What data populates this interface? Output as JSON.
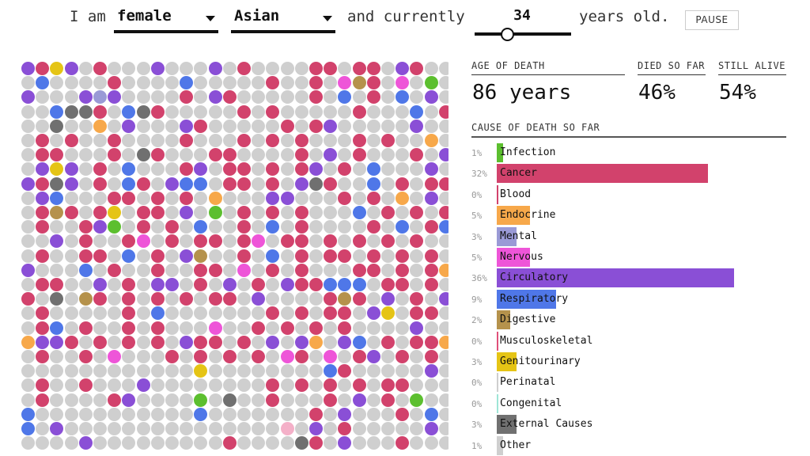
{
  "sentence": {
    "i_am": "I am",
    "sex": "female",
    "race": "Asian",
    "and_currently": "and currently",
    "age": "34",
    "years_old": "years old.",
    "pause_label": "PAUSE"
  },
  "slider": {
    "value": 34
  },
  "stats": {
    "age_of_death_label": "AGE OF DEATH",
    "age_of_death_value": "86 years",
    "died_label": "DIED SO FAR",
    "died_value": "46%",
    "alive_label": "STILL ALIVE",
    "alive_value": "54%"
  },
  "colors": {
    "alive": "#cfcfcf",
    "Infection": "#5cbf2f",
    "Cancer": "#d2426c",
    "Blood": "#d2426c",
    "Endocrine": "#f7a84a",
    "Mental": "#9a9ad6",
    "Nervous": "#ee55d8",
    "Circulatory": "#8a4fd6",
    "Respiratory": "#4f77e8",
    "Digestive": "#b5924c",
    "Musculoskeletal": "#e0507a",
    "Genitourinary": "#e5c415",
    "Perinatal": "#cfcfcf",
    "Congenital": "#9ee5d6",
    "External Causes": "#707070",
    "Other": "#bbbbbb"
  },
  "chart_data": [
    {
      "type": "bar",
      "title": "CAUSE OF DEATH SO FAR",
      "orientation": "horizontal",
      "categories": [
        "Infection",
        "Cancer",
        "Blood",
        "Endocrine",
        "Mental",
        "Nervous",
        "Circulatory",
        "Respiratory",
        "Digestive",
        "Musculoskeletal",
        "Genitourinary",
        "Perinatal",
        "Congenital",
        "External Causes",
        "Other"
      ],
      "values": [
        1,
        32,
        0,
        5,
        3,
        5,
        36,
        9,
        2,
        0,
        3,
        0,
        0,
        3,
        1
      ],
      "labels": [
        "1%",
        "32%",
        "0%",
        "5%",
        "3%",
        "5%",
        "36%",
        "9%",
        "2%",
        "0%",
        "3%",
        "0%",
        "0%",
        "3%",
        "1%"
      ],
      "unit": "%"
    },
    {
      "type": "scatter",
      "title": "population dot grid",
      "rows": 27,
      "cols": 30,
      "legend": [
        "alive",
        "Infection",
        "Cancer",
        "Endocrine",
        "Mental",
        "Nervous",
        "Circulatory",
        "Respiratory",
        "Digestive",
        "Genitourinary",
        "External Causes",
        "Congenital"
      ],
      "grid": [
        "VRYVgRgggVgggVgRggggRRgRRgVRgg",
        "gBggggRggggBgggggRggRgPnRgPgGg",
        "VgggVCVggggRgVRgggggRgBgRgBgVg",
        "ggBXXRgBXRgggggRgRgggggRgggBgR",
        "ggXggEgVgggVRgggggRgRVgggggVgg",
        "gRgRggRggggRgggRgRgRgggRgRggEg",
        "gRRgggRgXRgggRRggggRgVgRgggRgV",
        "gVYVgRgBgggRVgRRgRgRVgRgBgggVg",
        "VRXVgRgBRgVBBgRRgRgVXRggBgRgRR",
        "gVBgggRRgRgRgEgggVVgggRgRgEgVg",
        "gRnRgRYgRRgVgGgRgRgRgggBgRgRgR",
        "gRggRVGgRgRgBggRgBgRggggRgBgRB",
        "ggVgRggRPgRgRRgRPgRRgRgRgRgRgg",
        "gRggRRgBgRgVnggRgBgRgRRgRgRgRg",
        "VgggBgRggRggRRgPgRgRgggRRgRgRE",
        "gRRggVgRgVVgRgVgRgVRRBBBgRRgRg",
        "RgXgnRgRgRgRgRRgVggggRnRgVgRgV",
        "gRgggggRgBgggggggRgRgRRgVYgRRg",
        "gRBgRggRgRgggPggRgRgRgRggggVgg",
        "EVVRgRgRgRgVRRgRgVgVEgVBgRgRRE",
        "gRggRgPgggRgRgRgRgPRgPgRVgRgRg",
        "ggggggggggggYggggggggBRgggggVg",
        "gRggRgggVggggggggRgRgRgRgRRggg",
        "gRggggRVggggGgXggRgggRgVgRgGgg",
        "BgggggggggggBgggggggRgVgggRgBg",
        "BgVgggggggggggggggOgVgRgggggVg",
        "ggggVgggggggggRggggXRgVgggRggg"
      ]
    }
  ]
}
